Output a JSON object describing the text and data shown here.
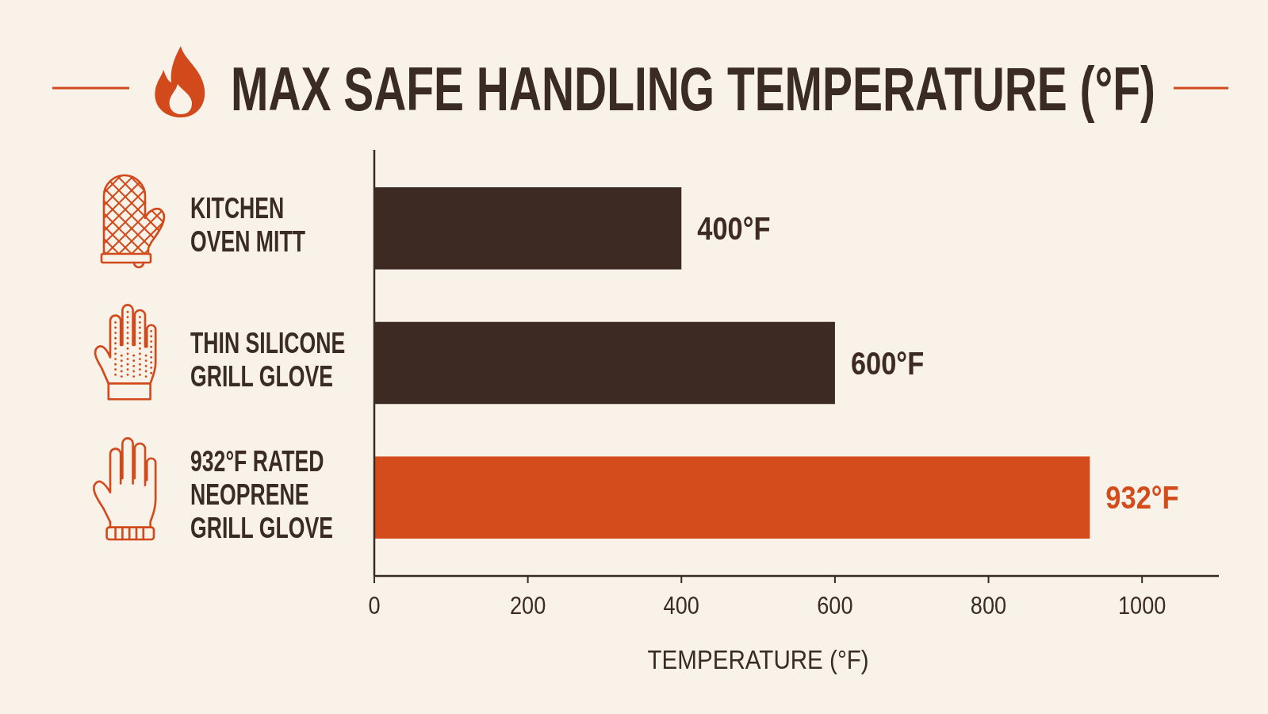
{
  "chart_data": {
    "type": "bar",
    "orientation": "horizontal",
    "title": "MAX SAFE HANDLING TEMPERATURE (°F)",
    "xlabel": "TEMPERATURE (°F)",
    "categories": [
      "KITCHEN\nOVEN MITT",
      "THIN SILICONE\nGRILL GLOVE",
      "932°F RATED\nNEOPRENE\nGRILL GLOVE"
    ],
    "values": [
      400,
      600,
      932
    ],
    "colors": [
      "#3d2a22",
      "#3d2a22",
      "#d44b1c"
    ],
    "value_labels": [
      "400°F",
      "600°F",
      "932°F"
    ],
    "xlim": [
      0,
      1100
    ],
    "xticks": [
      0,
      200,
      400,
      600,
      800,
      1000
    ]
  }
}
